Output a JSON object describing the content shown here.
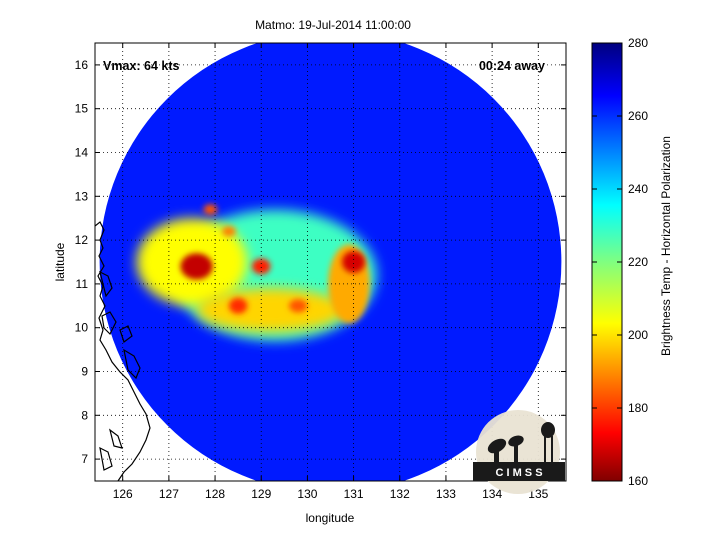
{
  "chart_data": {
    "type": "heatmap",
    "title": "Matmo: 19-Jul-2014 11:00:00",
    "xlabel": "longitude",
    "ylabel": "latitude",
    "xlim": [
      125.4,
      135.6
    ],
    "ylim": [
      6.5,
      16.5
    ],
    "xticks": [
      126,
      127,
      128,
      129,
      130,
      131,
      132,
      133,
      134,
      135
    ],
    "yticks": [
      7,
      8,
      9,
      10,
      11,
      12,
      13,
      14,
      15,
      16
    ],
    "grid": true,
    "annotations": {
      "vmax": "Vmax: 64 kts",
      "away": "00:24 away"
    },
    "colorbar": {
      "label": "Brightness Temp - Horizontal Polarization",
      "range": [
        160,
        280
      ],
      "ticks": [
        160,
        180,
        200,
        220,
        240,
        260,
        280
      ],
      "colormap": "jet"
    },
    "swath": {
      "center": [
        130.5,
        11.5
      ],
      "radius_deg": 5.0
    },
    "background_tb": 262,
    "cold_features": [
      {
        "lon": 129.3,
        "lat": 11.2,
        "rx": 2.2,
        "ry": 1.5,
        "tb": 228
      },
      {
        "lon": 127.5,
        "lat": 11.5,
        "rx": 1.2,
        "ry": 1.0,
        "tb": 205
      },
      {
        "lon": 129.2,
        "lat": 10.4,
        "rx": 1.6,
        "ry": 0.5,
        "tb": 200
      },
      {
        "lon": 130.9,
        "lat": 11.0,
        "rx": 0.45,
        "ry": 0.9,
        "tb": 195
      },
      {
        "lon": 127.6,
        "lat": 11.4,
        "rx": 0.35,
        "ry": 0.3,
        "tb": 168
      },
      {
        "lon": 131.0,
        "lat": 11.5,
        "rx": 0.25,
        "ry": 0.25,
        "tb": 170
      },
      {
        "lon": 128.5,
        "lat": 10.5,
        "rx": 0.2,
        "ry": 0.18,
        "tb": 180
      },
      {
        "lon": 129.0,
        "lat": 11.4,
        "rx": 0.2,
        "ry": 0.18,
        "tb": 178
      },
      {
        "lon": 129.8,
        "lat": 10.5,
        "rx": 0.2,
        "ry": 0.15,
        "tb": 185
      },
      {
        "lon": 127.9,
        "lat": 12.7,
        "rx": 0.15,
        "ry": 0.12,
        "tb": 185
      },
      {
        "lon": 128.3,
        "lat": 12.2,
        "rx": 0.15,
        "ry": 0.12,
        "tb": 190
      }
    ],
    "logo_text": "C I M S S"
  }
}
